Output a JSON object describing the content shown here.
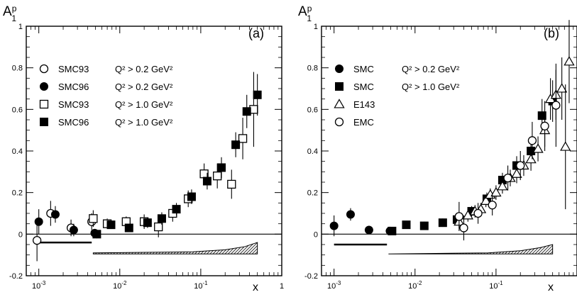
{
  "chart_data": [
    {
      "type": "scatter",
      "panel_label": "(a)",
      "ylabel": "A",
      "ylabel_sup": "p",
      "ylabel_sub": "1",
      "xlabel": "x",
      "xscale": "log",
      "xlim": [
        0.0007,
        1
      ],
      "ylim": [
        -0.2,
        1
      ],
      "xticks": [
        {
          "v": 0.001,
          "base": "10",
          "exp": "-3"
        },
        {
          "v": 0.01,
          "base": "10",
          "exp": "-2"
        },
        {
          "v": 0.1,
          "base": "10",
          "exp": "-1"
        },
        {
          "v": 1,
          "base": "1",
          "exp": ""
        }
      ],
      "yticks": [
        "-0.2",
        "0",
        "0.2",
        "0.4",
        "0.6",
        "0.8",
        "1"
      ],
      "legend": [
        {
          "label": "SMC93",
          "cut": "Q² > 0.2 GeV²",
          "marker": "circle-open"
        },
        {
          "label": "SMC96",
          "cut": "Q² > 0.2 GeV²",
          "marker": "circle-filled"
        },
        {
          "label": "SMC93",
          "cut": "Q² > 1.0 GeV²",
          "marker": "square-open"
        },
        {
          "label": "SMC96",
          "cut": "Q² > 1.0 GeV²",
          "marker": "square-filled"
        }
      ],
      "series": [
        {
          "marker": "circle-open",
          "points": [
            {
              "x": 0.00095,
              "y": -0.03,
              "err": 0.1
            },
            {
              "x": 0.0014,
              "y": 0.1,
              "err": 0.06
            },
            {
              "x": 0.0025,
              "y": 0.03,
              "err": 0.04
            },
            {
              "x": 0.0045,
              "y": 0.06,
              "err": 0.04
            }
          ]
        },
        {
          "marker": "circle-filled",
          "points": [
            {
              "x": 0.001,
              "y": 0.06,
              "err": 0.06
            },
            {
              "x": 0.0016,
              "y": 0.095,
              "err": 0.04
            },
            {
              "x": 0.0027,
              "y": 0.02,
              "err": 0.03
            },
            {
              "x": 0.0049,
              "y": 0.005,
              "err": 0.02
            }
          ]
        },
        {
          "marker": "square-open",
          "points": [
            {
              "x": 0.0047,
              "y": 0.075,
              "err": 0.04
            },
            {
              "x": 0.007,
              "y": 0.05,
              "err": 0.025
            },
            {
              "x": 0.012,
              "y": 0.06,
              "err": 0.025
            },
            {
              "x": 0.02,
              "y": 0.06,
              "err": 0.035
            },
            {
              "x": 0.03,
              "y": 0.035,
              "err": 0.05
            },
            {
              "x": 0.045,
              "y": 0.1,
              "err": 0.04
            },
            {
              "x": 0.07,
              "y": 0.17,
              "err": 0.04
            },
            {
              "x": 0.11,
              "y": 0.29,
              "err": 0.05
            },
            {
              "x": 0.16,
              "y": 0.28,
              "err": 0.06
            },
            {
              "x": 0.24,
              "y": 0.24,
              "err": 0.07
            },
            {
              "x": 0.33,
              "y": 0.46,
              "err": 0.1
            },
            {
              "x": 0.45,
              "y": 0.6,
              "err": 0.18
            }
          ]
        },
        {
          "marker": "square-filled",
          "points": [
            {
              "x": 0.0052,
              "y": 0.0,
              "err": 0.02
            },
            {
              "x": 0.0078,
              "y": 0.045,
              "err": 0.02
            },
            {
              "x": 0.013,
              "y": 0.03,
              "err": 0.02
            },
            {
              "x": 0.022,
              "y": 0.055,
              "err": 0.025
            },
            {
              "x": 0.033,
              "y": 0.075,
              "err": 0.03
            },
            {
              "x": 0.05,
              "y": 0.12,
              "err": 0.03
            },
            {
              "x": 0.077,
              "y": 0.18,
              "err": 0.035
            },
            {
              "x": 0.12,
              "y": 0.255,
              "err": 0.04
            },
            {
              "x": 0.18,
              "y": 0.32,
              "err": 0.05
            },
            {
              "x": 0.27,
              "y": 0.43,
              "err": 0.06
            },
            {
              "x": 0.37,
              "y": 0.59,
              "err": 0.08
            },
            {
              "x": 0.5,
              "y": 0.67,
              "err": 0.1
            }
          ]
        }
      ],
      "systematic_bands": [
        {
          "kind": "line",
          "x": [
            0.00095,
            0.0045
          ],
          "y": -0.04
        },
        {
          "kind": "band",
          "x": [
            0.0047,
            0.08,
            0.2,
            0.35,
            0.5
          ],
          "ytop": [
            -0.09,
            -0.085,
            -0.075,
            -0.06,
            -0.04
          ],
          "ybottom": -0.095
        }
      ]
    },
    {
      "type": "scatter",
      "panel_label": "(b)",
      "ylabel": "A",
      "ylabel_sup": "p",
      "ylabel_sub": "1",
      "xlabel": "x",
      "xscale": "log",
      "xlim": [
        0.0007,
        1
      ],
      "ylim": [
        -0.2,
        1
      ],
      "xticks": [
        {
          "v": 0.001,
          "base": "10",
          "exp": "-3"
        },
        {
          "v": 0.01,
          "base": "10",
          "exp": "-2"
        },
        {
          "v": 0.1,
          "base": "10",
          "exp": "-1"
        }
      ],
      "yticks": [
        "-0.2",
        "0",
        "0.2",
        "0.4",
        "0.6",
        "0.8",
        "1"
      ],
      "legend": [
        {
          "label": "SMC",
          "cut": "Q² > 0.2 GeV²",
          "marker": "circle-filled"
        },
        {
          "label": "SMC",
          "cut": "Q² > 1.0 GeV²",
          "marker": "square-filled"
        },
        {
          "label": "E143",
          "cut": "",
          "marker": "triangle-open"
        },
        {
          "label": "EMC",
          "cut": "",
          "marker": "circle-open"
        }
      ],
      "series": [
        {
          "marker": "circle-filled",
          "points": [
            {
              "x": 0.001,
              "y": 0.04,
              "err": 0.05
            },
            {
              "x": 0.0016,
              "y": 0.095,
              "err": 0.03
            },
            {
              "x": 0.0027,
              "y": 0.02,
              "err": 0.02
            },
            {
              "x": 0.0049,
              "y": 0.015,
              "err": 0.015
            }
          ]
        },
        {
          "marker": "square-filled",
          "points": [
            {
              "x": 0.0052,
              "y": 0.015,
              "err": 0.015
            },
            {
              "x": 0.0078,
              "y": 0.045,
              "err": 0.015
            },
            {
              "x": 0.013,
              "y": 0.04,
              "err": 0.02
            },
            {
              "x": 0.022,
              "y": 0.055,
              "err": 0.02
            },
            {
              "x": 0.033,
              "y": 0.07,
              "err": 0.02
            },
            {
              "x": 0.05,
              "y": 0.11,
              "err": 0.025
            },
            {
              "x": 0.077,
              "y": 0.17,
              "err": 0.03
            },
            {
              "x": 0.12,
              "y": 0.26,
              "err": 0.035
            },
            {
              "x": 0.18,
              "y": 0.33,
              "err": 0.045
            },
            {
              "x": 0.27,
              "y": 0.4,
              "err": 0.06
            },
            {
              "x": 0.37,
              "y": 0.57,
              "err": 0.08
            },
            {
              "x": 0.5,
              "y": 0.64,
              "err": 0.1
            }
          ]
        },
        {
          "marker": "triangle-open",
          "points": [
            {
              "x": 0.035,
              "y": 0.06,
              "err": 0.03
            },
            {
              "x": 0.045,
              "y": 0.09,
              "err": 0.03
            },
            {
              "x": 0.055,
              "y": 0.11,
              "err": 0.03
            },
            {
              "x": 0.065,
              "y": 0.12,
              "err": 0.03
            },
            {
              "x": 0.075,
              "y": 0.16,
              "err": 0.03
            },
            {
              "x": 0.085,
              "y": 0.19,
              "err": 0.03
            },
            {
              "x": 0.1,
              "y": 0.2,
              "err": 0.035
            },
            {
              "x": 0.12,
              "y": 0.23,
              "err": 0.035
            },
            {
              "x": 0.15,
              "y": 0.27,
              "err": 0.04
            },
            {
              "x": 0.18,
              "y": 0.29,
              "err": 0.045
            },
            {
              "x": 0.22,
              "y": 0.33,
              "err": 0.05
            },
            {
              "x": 0.27,
              "y": 0.36,
              "err": 0.055
            },
            {
              "x": 0.33,
              "y": 0.41,
              "err": 0.06
            },
            {
              "x": 0.4,
              "y": 0.5,
              "err": 0.08
            },
            {
              "x": 0.47,
              "y": 0.65,
              "err": 0.1
            },
            {
              "x": 0.55,
              "y": 0.67,
              "err": 0.12
            },
            {
              "x": 0.65,
              "y": 0.7,
              "err": 0.15
            },
            {
              "x": 0.8,
              "y": 0.83,
              "err": 0.2
            },
            {
              "x": 0.72,
              "y": 0.42,
              "err": 0.3
            }
          ]
        },
        {
          "marker": "circle-open",
          "points": [
            {
              "x": 0.035,
              "y": 0.085,
              "err": 0.07
            },
            {
              "x": 0.04,
              "y": 0.03,
              "err": 0.06
            },
            {
              "x": 0.06,
              "y": 0.1,
              "err": 0.05
            },
            {
              "x": 0.09,
              "y": 0.14,
              "err": 0.05
            },
            {
              "x": 0.14,
              "y": 0.27,
              "err": 0.06
            },
            {
              "x": 0.2,
              "y": 0.33,
              "err": 0.07
            },
            {
              "x": 0.28,
              "y": 0.45,
              "err": 0.09
            },
            {
              "x": 0.4,
              "y": 0.52,
              "err": 0.12
            },
            {
              "x": 0.55,
              "y": 0.62,
              "err": 0.2
            }
          ]
        }
      ],
      "systematic_bands": [
        {
          "kind": "line",
          "x": [
            0.001,
            0.0045
          ],
          "y": -0.05
        },
        {
          "kind": "band",
          "x": [
            0.0047,
            0.08,
            0.2,
            0.35,
            0.5
          ],
          "ytop": [
            -0.095,
            -0.09,
            -0.08,
            -0.065,
            -0.05
          ],
          "ybottom": -0.095
        }
      ]
    }
  ]
}
